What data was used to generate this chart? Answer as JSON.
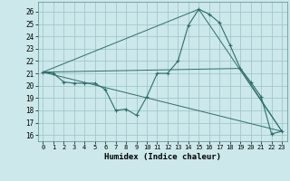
{
  "xlabel": "Humidex (Indice chaleur)",
  "bg_color": "#cce8eb",
  "grid_color": "#a0c8cc",
  "line_color": "#2e6e6a",
  "xlim": [
    -0.5,
    23.5
  ],
  "ylim": [
    15.5,
    26.8
  ],
  "yticks": [
    16,
    17,
    18,
    19,
    20,
    21,
    22,
    23,
    24,
    25,
    26
  ],
  "xticks": [
    0,
    1,
    2,
    3,
    4,
    5,
    6,
    7,
    8,
    9,
    10,
    11,
    12,
    13,
    14,
    15,
    16,
    17,
    18,
    19,
    20,
    21,
    22,
    23
  ],
  "series_main": {
    "x": [
      0,
      1,
      2,
      3,
      4,
      5,
      6,
      7,
      8,
      9,
      10,
      11,
      12,
      13,
      14,
      15,
      16,
      17,
      18,
      19,
      20,
      21,
      22,
      23
    ],
    "y": [
      21.1,
      21.0,
      20.3,
      20.2,
      20.2,
      20.2,
      19.7,
      18.0,
      18.1,
      17.6,
      19.1,
      21.0,
      21.0,
      22.0,
      24.9,
      26.2,
      25.8,
      25.1,
      23.3,
      21.4,
      20.3,
      19.1,
      16.1,
      16.3
    ]
  },
  "series_lines": [
    {
      "x": [
        0,
        23
      ],
      "y": [
        21.1,
        16.3
      ]
    },
    {
      "x": [
        0,
        15,
        23
      ],
      "y": [
        21.1,
        26.2,
        16.3
      ]
    },
    {
      "x": [
        0,
        19,
        23
      ],
      "y": [
        21.1,
        21.4,
        16.3
      ]
    }
  ]
}
